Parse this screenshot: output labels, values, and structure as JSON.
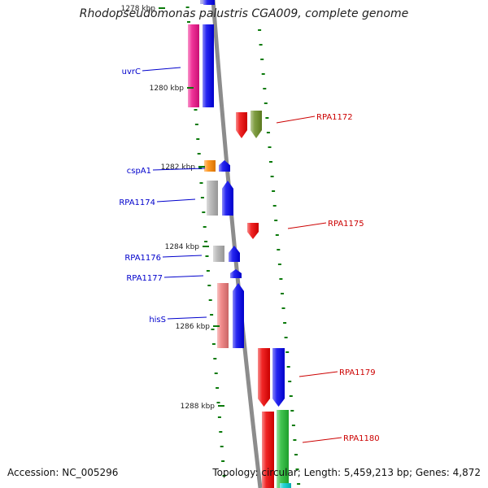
{
  "title": "Rhodopseudomonas palustris CGA009, complete genome",
  "footer": {
    "accession": "Accession: NC_005296",
    "topology": "Topology: circular; Length: 5,459,213 bp; Genes: 4,872"
  },
  "ticks": [
    "1278 kbp",
    "1280 kbp",
    "1282 kbp",
    "1284 kbp",
    "1286 kbp",
    "1288 kbp"
  ],
  "colors": {
    "backbone": "#8c8c8c",
    "dots": "#0a7a0a",
    "left_label": "#0000cc",
    "right_label": "#cc0000"
  },
  "left_labels": [
    "uvrC",
    "cspA1",
    "RPA1174",
    "RPA1176",
    "RPA1177",
    "hisS"
  ],
  "right_labels": [
    "RPA1172",
    "RPA1175",
    "RPA1179",
    "RPA1180"
  ],
  "features": [
    {
      "color": "#7777dd",
      "direction": "none"
    },
    {
      "color": "#0000ee",
      "direction": "none"
    },
    {
      "color": "#ee1188",
      "direction": "none"
    },
    {
      "color": "#0000ee",
      "direction": "none"
    },
    {
      "color": "#ee0000",
      "direction": "down"
    },
    {
      "color": "#6b8e23",
      "direction": "down"
    },
    {
      "color": "#ff8800",
      "direction": "none"
    },
    {
      "color": "#0000ee",
      "direction": "up"
    },
    {
      "color": "#b0b0b0",
      "direction": "none"
    },
    {
      "color": "#0000ee",
      "direction": "up"
    },
    {
      "color": "#ee0000",
      "direction": "down"
    },
    {
      "color": "#b0b0b0",
      "direction": "none"
    },
    {
      "color": "#0000ee",
      "direction": "up"
    },
    {
      "color": "#0000ee",
      "direction": "up"
    },
    {
      "color": "#ee7777",
      "direction": "none"
    },
    {
      "color": "#0000ee",
      "direction": "up"
    },
    {
      "color": "#ee0000",
      "direction": "down"
    },
    {
      "color": "#0000ee",
      "direction": "down"
    },
    {
      "color": "#ee0000",
      "direction": "none"
    },
    {
      "color": "#22bb33",
      "direction": "none"
    },
    {
      "color": "#00cccc",
      "direction": "none"
    }
  ]
}
